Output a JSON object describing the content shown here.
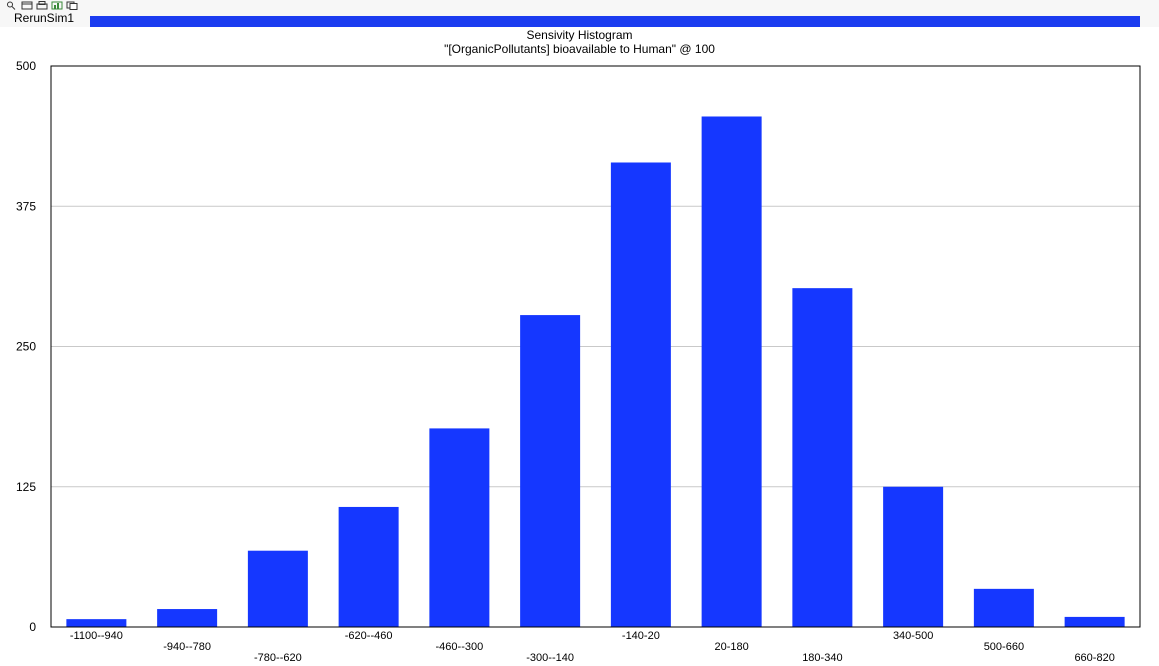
{
  "window": {
    "run_label": "RerunSim1"
  },
  "toolbar_icons": [
    "zoom-icon",
    "window-icon",
    "print-icon",
    "chart-icon",
    "copy-icon"
  ],
  "colors": {
    "bar": "#1537ff",
    "run_bar": "#1b3cf0",
    "grid": "#c9c9c9"
  },
  "chart_data": {
    "type": "bar",
    "title": "Sensivity Histogram",
    "subtitle": "\"[OrganicPollutants] bioavailable to Human\" @ 100",
    "categories": [
      "-1100--940",
      "-940--780",
      "-780--620",
      "-620--460",
      "-460--300",
      "-300--140",
      "-140-20",
      "20-180",
      "180-340",
      "340-500",
      "500-660",
      "660-820"
    ],
    "values": [
      7,
      16,
      68,
      107,
      177,
      278,
      414,
      455,
      302,
      125,
      34,
      9
    ],
    "ylim": [
      0,
      500
    ],
    "yticks": [
      "0",
      "125",
      "250",
      "375",
      "500"
    ],
    "grid": true
  }
}
